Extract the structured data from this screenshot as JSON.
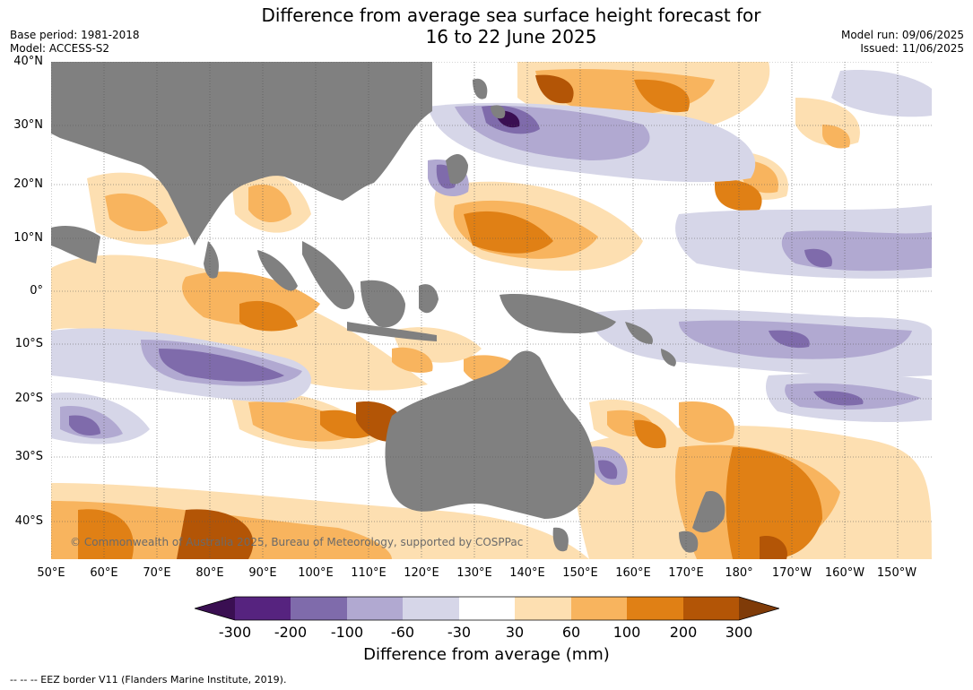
{
  "title": {
    "line1": "Difference from average sea surface height forecast for",
    "line2": "16 to 22 June 2025"
  },
  "meta": {
    "base_period": "Base period: 1981-2018",
    "model": "Model: ACCESS-S2",
    "model_run": "Model run: 09/06/2025",
    "issued": "Issued: 11/06/2025"
  },
  "map": {
    "lat_labels": [
      "40°N",
      "30°N",
      "20°N",
      "10°N",
      "0°",
      "10°S",
      "20°S",
      "30°S",
      "40°S"
    ],
    "lon_labels": [
      "50°E",
      "60°E",
      "70°E",
      "80°E",
      "90°E",
      "100°E",
      "110°E",
      "120°E",
      "130°E",
      "140°E",
      "150°E",
      "160°E",
      "170°E",
      "180°",
      "170°W",
      "160°W",
      "150°W"
    ],
    "copyright": "© Commonwealth of Australia 2025, Bureau of Meteorology, supported by COSPPac",
    "land_color": "#808080"
  },
  "colorbar": {
    "labels": [
      "-300",
      "-200",
      "-100",
      "-60",
      "-30",
      "30",
      "60",
      "100",
      "200",
      "300"
    ],
    "colors": [
      "#3a0f52",
      "#56237f",
      "#7f6bab",
      "#b1a9d1",
      "#d6d6e8",
      "#ffffff",
      "#fddfb1",
      "#f8b45e",
      "#e08015",
      "#b35506",
      "#7f3b08"
    ],
    "title": "Difference from average (mm)"
  },
  "footnote": "--  --  -- EEZ border V11 (Flanders Marine Institute, 2019)."
}
